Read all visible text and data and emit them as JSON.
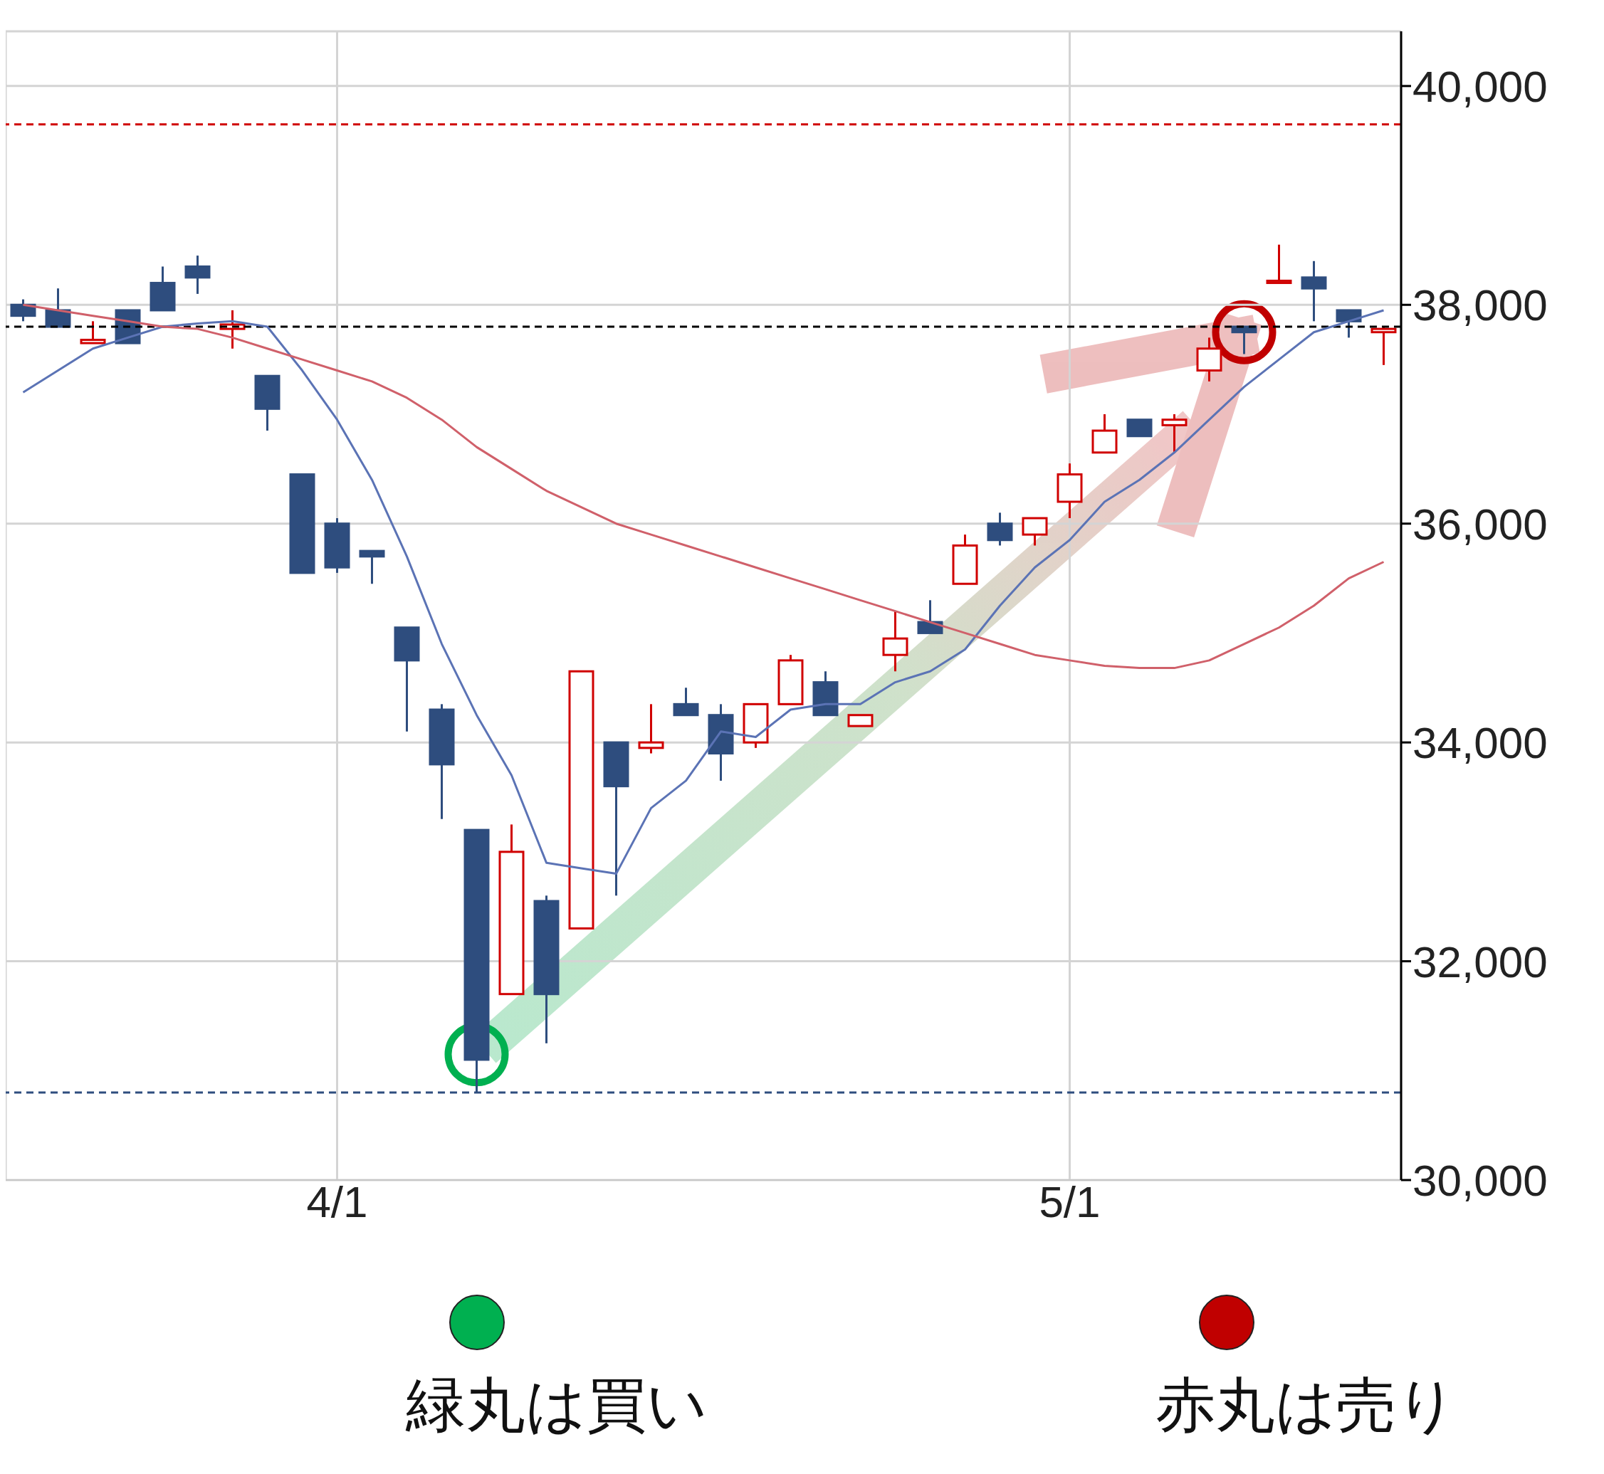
{
  "chart_data": {
    "type": "candlestick",
    "categories": [
      null,
      null,
      null,
      null,
      null,
      null,
      null,
      null,
      null,
      "4/1",
      null,
      null,
      null,
      null,
      null,
      null,
      null,
      null,
      null,
      null,
      null,
      null,
      null,
      null,
      null,
      null,
      null,
      null,
      null,
      null,
      "5/1",
      null,
      null,
      null,
      null,
      null,
      null,
      null,
      null,
      null
    ],
    "ohlc": [
      [
        38000,
        38050,
        37850,
        37900
      ],
      [
        37950,
        38150,
        37800,
        37800
      ],
      [
        37650,
        37850,
        37650,
        37680
      ],
      [
        37950,
        37950,
        37650,
        37650
      ],
      [
        38200,
        38350,
        37950,
        37950
      ],
      [
        38350,
        38450,
        38100,
        38250
      ],
      [
        37780,
        37950,
        37600,
        37820
      ],
      [
        37350,
        37350,
        36850,
        37050
      ],
      [
        36450,
        36450,
        35550,
        35550
      ],
      [
        36000,
        36050,
        35550,
        35600
      ],
      [
        35750,
        35750,
        35450,
        35700
      ],
      [
        35050,
        35050,
        34100,
        34750
      ],
      [
        34300,
        34350,
        33300,
        33800
      ],
      [
        33200,
        33200,
        30800,
        31100
      ],
      [
        31700,
        33250,
        31700,
        33000
      ],
      [
        32550,
        32600,
        31250,
        31700
      ],
      [
        32300,
        34650,
        32300,
        34650
      ],
      [
        34000,
        34000,
        32600,
        33600
      ],
      [
        33950,
        34350,
        33900,
        34000
      ],
      [
        34350,
        34500,
        34250,
        34250
      ],
      [
        34250,
        34350,
        33650,
        33900
      ],
      [
        34000,
        34350,
        33950,
        34350
      ],
      [
        34350,
        34800,
        34350,
        34750
      ],
      [
        34550,
        34650,
        34250,
        34250
      ],
      [
        34150,
        34250,
        34150,
        34250
      ],
      [
        34800,
        35200,
        34650,
        34950
      ],
      [
        35100,
        35300,
        35000,
        35000
      ],
      [
        35450,
        35900,
        35450,
        35800
      ],
      [
        36000,
        36100,
        35800,
        35850
      ],
      [
        35900,
        36050,
        35800,
        36050
      ],
      [
        36200,
        36550,
        36050,
        36450
      ],
      [
        36650,
        37000,
        36650,
        36850
      ],
      [
        36950,
        36950,
        36800,
        36800
      ],
      [
        36900,
        37000,
        36650,
        36950
      ],
      [
        37400,
        37700,
        37300,
        37600
      ],
      [
        37800,
        37800,
        37550,
        37750
      ],
      [
        38200,
        38550,
        38200,
        38220
      ],
      [
        38250,
        38400,
        37850,
        38150
      ],
      [
        37950,
        37950,
        37700,
        37850
      ],
      [
        37750,
        37800,
        37450,
        37780
      ]
    ],
    "colors": [
      "#2e4d7e",
      "#2e4d7e",
      "#d00000",
      "#2e4d7e",
      "#2e4d7e",
      "#2e4d7e",
      "#d00000",
      "#2e4d7e",
      "#2e4d7e",
      "#2e4d7e",
      "#2e4d7e",
      "#2e4d7e",
      "#2e4d7e",
      "#2e4d7e",
      "#d00000",
      "#2e4d7e",
      "#d00000",
      "#2e4d7e",
      "#d00000",
      "#2e4d7e",
      "#2e4d7e",
      "#d00000",
      "#d00000",
      "#2e4d7e",
      "#d00000",
      "#d00000",
      "#2e4d7e",
      "#d00000",
      "#2e4d7e",
      "#d00000",
      "#d00000",
      "#d00000",
      "#2e4d7e",
      "#d00000",
      "#d00000",
      "#2e4d7e",
      "#d00000",
      "#2e4d7e",
      "#2e4d7e",
      "#d00000"
    ],
    "series": [
      {
        "type": "line",
        "color": "#5b73b5",
        "values": [
          37200,
          37400,
          37600,
          37700,
          37800,
          37830,
          37850,
          37800,
          37400,
          36950,
          36400,
          35700,
          34900,
          34250,
          33700,
          32900,
          32850,
          32800,
          33400,
          33650,
          34100,
          34050,
          34300,
          34350,
          34350,
          34550,
          34650,
          34850,
          35250,
          35600,
          35850,
          36200,
          36400,
          36650,
          36950,
          37250,
          37500,
          37750,
          37850,
          37950
        ]
      },
      {
        "type": "line",
        "color": "#d0606a",
        "values": [
          38000,
          37950,
          37900,
          37850,
          37800,
          37780,
          37700,
          37600,
          37500,
          37400,
          37300,
          37150,
          36950,
          36700,
          36500,
          36300,
          36150,
          36000,
          35900,
          35800,
          35700,
          35600,
          35500,
          35400,
          35300,
          35200,
          35100,
          35000,
          34900,
          34800,
          34750,
          34700,
          34680,
          34680,
          34750,
          34900,
          35050,
          35250,
          35500,
          35650
        ]
      }
    ],
    "ylim": [
      30000,
      40500
    ],
    "yticks": [
      {
        "value": 30000,
        "label": "30,000"
      },
      {
        "value": 32000,
        "label": "32,000"
      },
      {
        "value": 34000,
        "label": "34,000"
      },
      {
        "value": 36000,
        "label": "36,000"
      },
      {
        "value": 38000,
        "label": "38,000"
      },
      {
        "value": 40000,
        "label": "40,000"
      }
    ],
    "grid": true,
    "ref_lines": [
      {
        "axis": "y",
        "value": 39650,
        "color": "#d00000",
        "line_style": "dashed"
      },
      {
        "axis": "y",
        "value": 37800,
        "color": "#000000",
        "line_style": "dashed"
      },
      {
        "axis": "y",
        "value": 30800,
        "color": "#2e4d7e",
        "line_style": "dashed"
      }
    ],
    "annotations": [
      "緑丸は買い",
      "赤丸は売り"
    ]
  }
}
